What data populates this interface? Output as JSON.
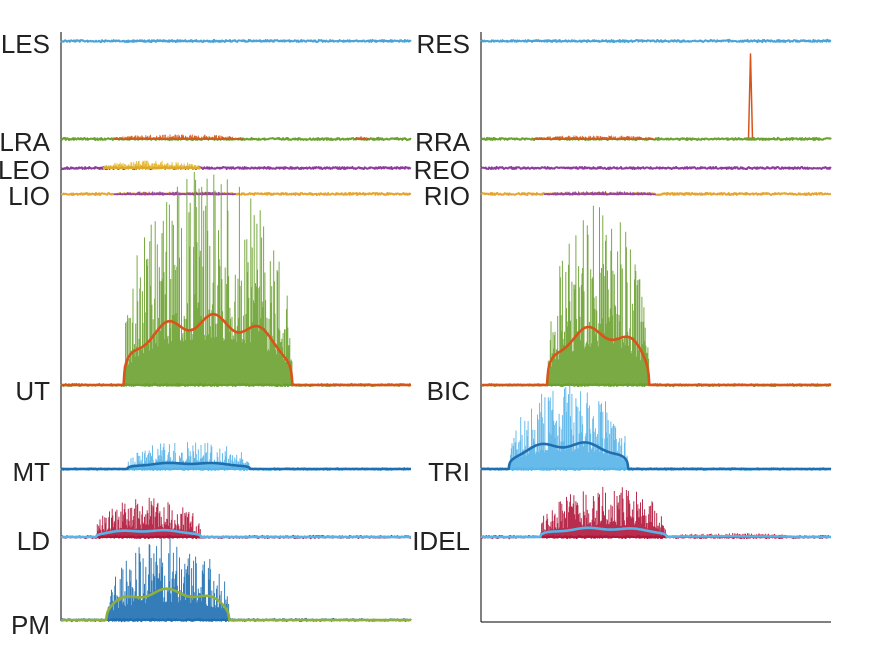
{
  "chart_data": [
    {
      "type": "line",
      "panel": "left",
      "grid": false,
      "series": [
        {
          "name": "LES",
          "color": "#4aa3d6",
          "baseline_label": "LES",
          "activity": [
            {
              "from": 0.15,
              "to": 0.42,
              "amplitude": 0.12
            }
          ]
        },
        {
          "name": "LRA",
          "color": "#6aa12f",
          "burst_color": "#d9541a",
          "baseline_label": "LRA",
          "activity": [
            {
              "from": 0.15,
              "to": 0.52,
              "amplitude": 0.25
            },
            {
              "from": 0.84,
              "to": 0.88,
              "amplitude": 0.15
            }
          ]
        },
        {
          "name": "LEO",
          "color": "#8e3b9e",
          "burst_color": "#e5b522",
          "baseline_label": "LEO",
          "activity": [
            {
              "from": 0.12,
              "to": 0.4,
              "amplitude": 0.4
            }
          ]
        },
        {
          "name": "LIO",
          "color": "#e6a532",
          "burst_color": "#8e3b9e",
          "baseline_label": "LIO",
          "activity": [
            {
              "from": 0.15,
              "to": 0.5,
              "amplitude": 0.2
            }
          ]
        },
        {
          "name": "UT",
          "color": "#6aa12f",
          "envelope_color": "#d9541a",
          "baseline_label": "UT",
          "activity": [
            {
              "from": 0.18,
              "to": 0.66,
              "amplitude": 1.0
            }
          ],
          "envelope_peak": 0.22
        },
        {
          "name": "MT",
          "color": "#56b4e9",
          "envelope_color": "#1f6fb0",
          "baseline_label": "MT",
          "activity": [
            {
              "from": 0.19,
              "to": 0.54,
              "amplitude": 0.6
            }
          ],
          "envelope_peak": 0.15
        },
        {
          "name": "LD",
          "color": "#b0163a",
          "envelope_color": "#56b4e9",
          "baseline_label": "LD",
          "activity": [
            {
              "from": 0.1,
              "to": 0.4,
              "amplitude": 0.6
            }
          ],
          "envelope_peak": 0.12
        },
        {
          "name": "PM",
          "color": "#1f6fb0",
          "envelope_color": "#8fae3a",
          "baseline_label": "PM",
          "activity": [
            {
              "from": 0.13,
              "to": 0.48,
              "amplitude": 1.0
            }
          ],
          "envelope_peak": 0.25
        }
      ]
    },
    {
      "type": "line",
      "panel": "right",
      "grid": false,
      "series": [
        {
          "name": "RES",
          "color": "#4aa3d6",
          "baseline_label": "RES",
          "activity": [
            {
              "from": 0.12,
              "to": 0.42,
              "amplitude": 0.08
            }
          ]
        },
        {
          "name": "RRA",
          "color": "#6aa12f",
          "burst_color": "#d9541a",
          "baseline_label": "RRA",
          "activity": [
            {
              "from": 0.15,
              "to": 0.5,
              "amplitude": 0.2
            }
          ],
          "spike": {
            "at": 0.77,
            "amplitude": 1.0
          }
        },
        {
          "name": "REO",
          "color": "#8e3b9e",
          "baseline_label": "REO",
          "activity": []
        },
        {
          "name": "RIO",
          "color": "#e6a532",
          "burst_color": "#8e3b9e",
          "baseline_label": "RIO",
          "activity": [
            {
              "from": 0.18,
              "to": 0.5,
              "amplitude": 0.2
            }
          ]
        },
        {
          "name": "BIC",
          "color": "#6aa12f",
          "envelope_color": "#d9541a",
          "baseline_label": "BIC",
          "activity": [
            {
              "from": 0.19,
              "to": 0.48,
              "amplitude": 1.0
            }
          ],
          "envelope_peak": 0.22
        },
        {
          "name": "TRI",
          "color": "#56b4e9",
          "envelope_color": "#1f6fb0",
          "baseline_label": "TRI",
          "activity": [
            {
              "from": 0.08,
              "to": 0.42,
              "amplitude": 1.0
            }
          ],
          "envelope_peak": 0.22
        },
        {
          "name": "IDEL",
          "color": "#b0163a",
          "envelope_color": "#56b4e9",
          "baseline_label": "IDEL",
          "activity": [
            {
              "from": 0.17,
              "to": 0.53,
              "amplitude": 0.8
            },
            {
              "from": 0.53,
              "to": 0.9,
              "amplitude": 0.06
            }
          ],
          "envelope_peak": 0.12
        }
      ]
    }
  ]
}
